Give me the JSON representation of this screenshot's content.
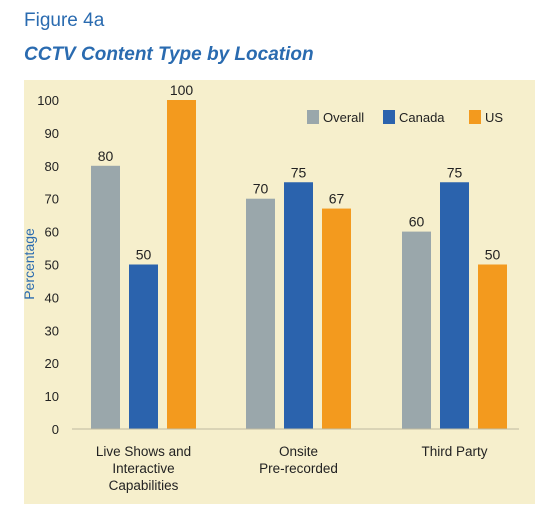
{
  "figure_label": "Figure 4a",
  "colors": {
    "title": "#2a6bb0",
    "panel": "#f6efcc",
    "Overall": "#9aa7ab",
    "Canada": "#2b63ad",
    "US": "#f39a1e"
  },
  "chart_data": {
    "type": "bar",
    "title": "CCTV Content Type by Location",
    "ylabel": "Percentage",
    "xlabel": "",
    "ylim": [
      0,
      100
    ],
    "yticks": [
      0,
      10,
      20,
      30,
      40,
      50,
      60,
      70,
      80,
      90,
      100
    ],
    "categories": [
      [
        "Live Shows and",
        "Interactive",
        "Capabilities"
      ],
      [
        "Onsite",
        "Pre-recorded"
      ],
      [
        "Third Party"
      ]
    ],
    "series": [
      {
        "name": "Overall",
        "values": [
          80,
          70,
          60
        ]
      },
      {
        "name": "Canada",
        "values": [
          50,
          75,
          75
        ]
      },
      {
        "name": "US",
        "values": [
          100,
          67,
          50
        ]
      }
    ],
    "legend_position": "top-right",
    "grid": false
  }
}
